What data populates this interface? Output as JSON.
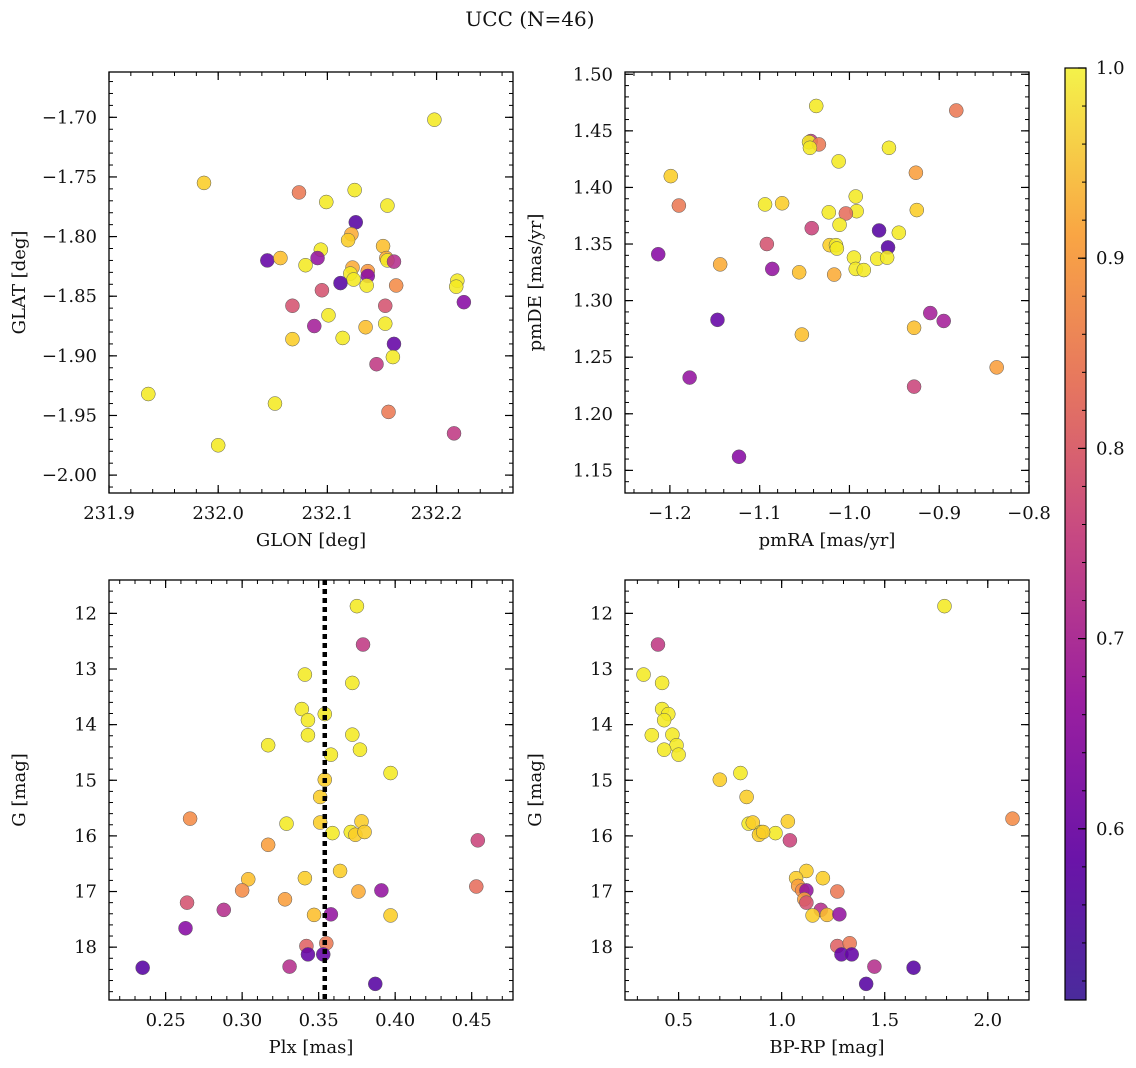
{
  "figure": {
    "title": "UCC (N=46)"
  },
  "colorbar": {
    "colormap": "plasma",
    "range": [
      0.51,
      1.0
    ],
    "ticks": [
      0.6,
      0.7,
      0.8,
      0.9,
      1.0
    ],
    "tick_labels": [
      "0.6",
      "0.7",
      "0.8",
      "0.9",
      "1.0"
    ]
  },
  "chart_data": [
    {
      "type": "scatter",
      "title": "",
      "xlabel": "GLON [deg]",
      "ylabel": "GLAT [deg]",
      "xlim": [
        231.9,
        232.27
      ],
      "ylim": [
        -2.015,
        -1.662
      ],
      "xticks": [
        231.9,
        232.0,
        232.1,
        232.2
      ],
      "xtick_labels": [
        "231.9",
        "232.0",
        "232.1",
        "232.2"
      ],
      "yticks": [
        -2.0,
        -1.95,
        -1.9,
        -1.85,
        -1.8,
        -1.75,
        -1.7
      ],
      "ytick_labels": [
        "−2.00",
        "−1.95",
        "−1.90",
        "−1.85",
        "−1.80",
        "−1.75",
        "−1.70"
      ],
      "y_inverted": false,
      "grid": false,
      "points": [
        {
          "x": 232.198,
          "y": -1.702,
          "c": 0.985
        },
        {
          "x": 231.987,
          "y": -1.755,
          "c": 0.95
        },
        {
          "x": 232.074,
          "y": -1.763,
          "c": 0.82
        },
        {
          "x": 232.125,
          "y": -1.761,
          "c": 0.985
        },
        {
          "x": 232.099,
          "y": -1.771,
          "c": 0.985
        },
        {
          "x": 232.155,
          "y": -1.774,
          "c": 0.985
        },
        {
          "x": 232.126,
          "y": -1.788,
          "c": 0.53
        },
        {
          "x": 232.122,
          "y": -1.798,
          "c": 0.9
        },
        {
          "x": 232.119,
          "y": -1.803,
          "c": 0.95
        },
        {
          "x": 232.094,
          "y": -1.811,
          "c": 0.985
        },
        {
          "x": 232.151,
          "y": -1.808,
          "c": 0.93
        },
        {
          "x": 232.154,
          "y": -1.818,
          "c": 0.9
        },
        {
          "x": 232.155,
          "y": -1.82,
          "c": 0.985
        },
        {
          "x": 232.045,
          "y": -1.82,
          "c": 0.55
        },
        {
          "x": 232.057,
          "y": -1.818,
          "c": 0.93
        },
        {
          "x": 232.08,
          "y": -1.824,
          "c": 0.985
        },
        {
          "x": 232.091,
          "y": -1.818,
          "c": 0.62
        },
        {
          "x": 232.161,
          "y": -1.821,
          "c": 0.68
        },
        {
          "x": 232.123,
          "y": -1.826,
          "c": 0.9
        },
        {
          "x": 232.137,
          "y": -1.829,
          "c": 0.87
        },
        {
          "x": 232.137,
          "y": -1.833,
          "c": 0.6
        },
        {
          "x": 232.121,
          "y": -1.831,
          "c": 0.985
        },
        {
          "x": 232.124,
          "y": -1.836,
          "c": 0.985
        },
        {
          "x": 232.112,
          "y": -1.839,
          "c": 0.53
        },
        {
          "x": 232.136,
          "y": -1.841,
          "c": 0.985
        },
        {
          "x": 232.163,
          "y": -1.841,
          "c": 0.85
        },
        {
          "x": 232.219,
          "y": -1.837,
          "c": 0.985
        },
        {
          "x": 232.218,
          "y": -1.842,
          "c": 0.985
        },
        {
          "x": 232.095,
          "y": -1.845,
          "c": 0.75
        },
        {
          "x": 232.225,
          "y": -1.855,
          "c": 0.6
        },
        {
          "x": 232.068,
          "y": -1.858,
          "c": 0.75
        },
        {
          "x": 232.153,
          "y": -1.858,
          "c": 0.75
        },
        {
          "x": 232.101,
          "y": -1.866,
          "c": 0.985
        },
        {
          "x": 232.088,
          "y": -1.875,
          "c": 0.65
        },
        {
          "x": 232.153,
          "y": -1.873,
          "c": 0.985
        },
        {
          "x": 232.135,
          "y": -1.876,
          "c": 0.93
        },
        {
          "x": 232.068,
          "y": -1.886,
          "c": 0.95
        },
        {
          "x": 232.114,
          "y": -1.885,
          "c": 0.985
        },
        {
          "x": 232.161,
          "y": -1.89,
          "c": 0.55
        },
        {
          "x": 232.16,
          "y": -1.901,
          "c": 0.985
        },
        {
          "x": 232.145,
          "y": -1.907,
          "c": 0.7
        },
        {
          "x": 231.936,
          "y": -1.932,
          "c": 0.985
        },
        {
          "x": 232.052,
          "y": -1.94,
          "c": 0.985
        },
        {
          "x": 232.156,
          "y": -1.947,
          "c": 0.82
        },
        {
          "x": 232.216,
          "y": -1.965,
          "c": 0.7
        },
        {
          "x": 232.0,
          "y": -1.975,
          "c": 0.985
        }
      ]
    },
    {
      "type": "scatter",
      "title": "",
      "xlabel": "pmRA [mas/yr]",
      "ylabel": "pmDE [mas/yr]",
      "xlim": [
        -1.25,
        -0.8
      ],
      "ylim": [
        1.13,
        1.502
      ],
      "xticks": [
        -1.2,
        -1.1,
        -1.0,
        -0.9,
        -0.8
      ],
      "xtick_labels": [
        "−1.2",
        "−1.1",
        "−1.0",
        "−0.9",
        "−0.8"
      ],
      "yticks": [
        1.15,
        1.2,
        1.25,
        1.3,
        1.35,
        1.4,
        1.45,
        1.5
      ],
      "ytick_labels": [
        "1.15",
        "1.20",
        "1.25",
        "1.30",
        "1.35",
        "1.40",
        "1.45",
        "1.50"
      ],
      "y_inverted": false,
      "grid": false,
      "points": [
        {
          "x": -1.037,
          "y": 1.472,
          "c": 0.985
        },
        {
          "x": -0.881,
          "y": 1.468,
          "c": 0.82
        },
        {
          "x": -1.043,
          "y": 1.441,
          "c": 0.7
        },
        {
          "x": -1.045,
          "y": 1.44,
          "c": 0.985
        },
        {
          "x": -1.034,
          "y": 1.438,
          "c": 0.82
        },
        {
          "x": -1.044,
          "y": 1.435,
          "c": 0.985
        },
        {
          "x": -0.956,
          "y": 1.435,
          "c": 0.985
        },
        {
          "x": -1.012,
          "y": 1.423,
          "c": 0.985
        },
        {
          "x": -0.926,
          "y": 1.413,
          "c": 0.88
        },
        {
          "x": -1.199,
          "y": 1.41,
          "c": 0.95
        },
        {
          "x": -0.993,
          "y": 1.392,
          "c": 0.985
        },
        {
          "x": -1.075,
          "y": 1.386,
          "c": 0.95
        },
        {
          "x": -1.094,
          "y": 1.385,
          "c": 0.985
        },
        {
          "x": -1.19,
          "y": 1.384,
          "c": 0.82
        },
        {
          "x": -0.925,
          "y": 1.38,
          "c": 0.95
        },
        {
          "x": -0.992,
          "y": 1.379,
          "c": 0.985
        },
        {
          "x": -1.004,
          "y": 1.377,
          "c": 0.8
        },
        {
          "x": -1.023,
          "y": 1.378,
          "c": 0.985
        },
        {
          "x": -1.011,
          "y": 1.367,
          "c": 0.985
        },
        {
          "x": -1.042,
          "y": 1.364,
          "c": 0.72
        },
        {
          "x": -0.967,
          "y": 1.362,
          "c": 0.53
        },
        {
          "x": -0.945,
          "y": 1.36,
          "c": 0.985
        },
        {
          "x": -1.213,
          "y": 1.341,
          "c": 0.6
        },
        {
          "x": -1.092,
          "y": 1.35,
          "c": 0.75
        },
        {
          "x": -1.022,
          "y": 1.349,
          "c": 0.95
        },
        {
          "x": -1.015,
          "y": 1.349,
          "c": 0.985
        },
        {
          "x": -1.014,
          "y": 1.346,
          "c": 0.985
        },
        {
          "x": -0.957,
          "y": 1.347,
          "c": 0.53
        },
        {
          "x": -0.995,
          "y": 1.338,
          "c": 0.985
        },
        {
          "x": -0.969,
          "y": 1.337,
          "c": 0.985
        },
        {
          "x": -0.958,
          "y": 1.338,
          "c": 0.985
        },
        {
          "x": -1.144,
          "y": 1.332,
          "c": 0.9
        },
        {
          "x": -1.086,
          "y": 1.328,
          "c": 0.62
        },
        {
          "x": -0.993,
          "y": 1.328,
          "c": 0.985
        },
        {
          "x": -0.984,
          "y": 1.327,
          "c": 0.985
        },
        {
          "x": -1.056,
          "y": 1.325,
          "c": 0.93
        },
        {
          "x": -1.017,
          "y": 1.323,
          "c": 0.9
        },
        {
          "x": -0.91,
          "y": 1.289,
          "c": 0.65
        },
        {
          "x": -1.147,
          "y": 1.283,
          "c": 0.55
        },
        {
          "x": -0.895,
          "y": 1.282,
          "c": 0.65
        },
        {
          "x": -0.928,
          "y": 1.276,
          "c": 0.93
        },
        {
          "x": -1.053,
          "y": 1.27,
          "c": 0.93
        },
        {
          "x": -0.836,
          "y": 1.241,
          "c": 0.88
        },
        {
          "x": -1.178,
          "y": 1.232,
          "c": 0.62
        },
        {
          "x": -0.928,
          "y": 1.224,
          "c": 0.72
        },
        {
          "x": -1.123,
          "y": 1.162,
          "c": 0.6
        }
      ]
    },
    {
      "type": "scatter",
      "title": "",
      "xlabel": "Plx [mas]",
      "ylabel": "G [mag]",
      "xlim": [
        0.213,
        0.477
      ],
      "ylim": [
        18.95,
        11.4
      ],
      "xticks": [
        0.25,
        0.3,
        0.35,
        0.4,
        0.45
      ],
      "xtick_labels": [
        "0.25",
        "0.30",
        "0.35",
        "0.40",
        "0.45"
      ],
      "yticks": [
        12,
        13,
        14,
        15,
        16,
        17,
        18
      ],
      "ytick_labels": [
        "12",
        "13",
        "14",
        "15",
        "16",
        "17",
        "18"
      ],
      "y_inverted": true,
      "grid": false,
      "vline": {
        "x": 0.354,
        "style": "dotted",
        "color": "#000000"
      },
      "points": [
        {
          "x": 0.375,
          "y": 11.87,
          "c": 0.985
        },
        {
          "x": 0.379,
          "y": 12.56,
          "c": 0.7
        },
        {
          "x": 0.341,
          "y": 13.1,
          "c": 0.985
        },
        {
          "x": 0.372,
          "y": 13.25,
          "c": 0.985
        },
        {
          "x": 0.339,
          "y": 13.72,
          "c": 0.985
        },
        {
          "x": 0.354,
          "y": 13.81,
          "c": 0.985
        },
        {
          "x": 0.343,
          "y": 13.92,
          "c": 0.985
        },
        {
          "x": 0.343,
          "y": 14.19,
          "c": 0.985
        },
        {
          "x": 0.372,
          "y": 14.18,
          "c": 0.985
        },
        {
          "x": 0.317,
          "y": 14.37,
          "c": 0.985
        },
        {
          "x": 0.377,
          "y": 14.45,
          "c": 0.985
        },
        {
          "x": 0.358,
          "y": 14.54,
          "c": 0.985
        },
        {
          "x": 0.397,
          "y": 14.87,
          "c": 0.985
        },
        {
          "x": 0.354,
          "y": 14.99,
          "c": 0.95
        },
        {
          "x": 0.351,
          "y": 15.3,
          "c": 0.95
        },
        {
          "x": 0.266,
          "y": 15.69,
          "c": 0.85
        },
        {
          "x": 0.329,
          "y": 15.78,
          "c": 0.985
        },
        {
          "x": 0.351,
          "y": 15.76,
          "c": 0.95
        },
        {
          "x": 0.378,
          "y": 15.74,
          "c": 0.95
        },
        {
          "x": 0.371,
          "y": 15.93,
          "c": 0.985
        },
        {
          "x": 0.359,
          "y": 15.95,
          "c": 0.985
        },
        {
          "x": 0.374,
          "y": 15.98,
          "c": 0.95
        },
        {
          "x": 0.38,
          "y": 15.93,
          "c": 0.95
        },
        {
          "x": 0.454,
          "y": 16.08,
          "c": 0.72
        },
        {
          "x": 0.317,
          "y": 16.16,
          "c": 0.88
        },
        {
          "x": 0.364,
          "y": 16.63,
          "c": 0.95
        },
        {
          "x": 0.341,
          "y": 16.76,
          "c": 0.95
        },
        {
          "x": 0.304,
          "y": 16.78,
          "c": 0.93
        },
        {
          "x": 0.3,
          "y": 16.98,
          "c": 0.85
        },
        {
          "x": 0.376,
          "y": 17.0,
          "c": 0.9
        },
        {
          "x": 0.391,
          "y": 16.98,
          "c": 0.62
        },
        {
          "x": 0.453,
          "y": 16.91,
          "c": 0.8
        },
        {
          "x": 0.264,
          "y": 17.2,
          "c": 0.75
        },
        {
          "x": 0.328,
          "y": 17.14,
          "c": 0.88
        },
        {
          "x": 0.288,
          "y": 17.33,
          "c": 0.68
        },
        {
          "x": 0.347,
          "y": 17.42,
          "c": 0.93
        },
        {
          "x": 0.358,
          "y": 17.41,
          "c": 0.62
        },
        {
          "x": 0.397,
          "y": 17.43,
          "c": 0.95
        },
        {
          "x": 0.263,
          "y": 17.66,
          "c": 0.6
        },
        {
          "x": 0.342,
          "y": 17.98,
          "c": 0.78
        },
        {
          "x": 0.355,
          "y": 17.93,
          "c": 0.82
        },
        {
          "x": 0.343,
          "y": 18.13,
          "c": 0.55
        },
        {
          "x": 0.353,
          "y": 18.13,
          "c": 0.55
        },
        {
          "x": 0.235,
          "y": 18.37,
          "c": 0.53
        },
        {
          "x": 0.331,
          "y": 18.35,
          "c": 0.68
        },
        {
          "x": 0.387,
          "y": 18.66,
          "c": 0.53
        }
      ]
    },
    {
      "type": "scatter",
      "title": "",
      "xlabel": "BP-RP [mag]",
      "ylabel": "G [mag]",
      "xlim": [
        0.24,
        2.2
      ],
      "ylim": [
        18.95,
        11.4
      ],
      "xticks": [
        0.5,
        1.0,
        1.5,
        2.0
      ],
      "xtick_labels": [
        "0.5",
        "1.0",
        "1.5",
        "2.0"
      ],
      "yticks": [
        12,
        13,
        14,
        15,
        16,
        17,
        18
      ],
      "ytick_labels": [
        "12",
        "13",
        "14",
        "15",
        "16",
        "17",
        "18"
      ],
      "y_inverted": true,
      "grid": false,
      "points": [
        {
          "x": 1.79,
          "y": 11.87,
          "c": 0.985
        },
        {
          "x": 0.4,
          "y": 12.56,
          "c": 0.7
        },
        {
          "x": 0.33,
          "y": 13.1,
          "c": 0.985
        },
        {
          "x": 0.42,
          "y": 13.25,
          "c": 0.985
        },
        {
          "x": 0.42,
          "y": 13.72,
          "c": 0.985
        },
        {
          "x": 0.45,
          "y": 13.81,
          "c": 0.985
        },
        {
          "x": 0.43,
          "y": 13.92,
          "c": 0.985
        },
        {
          "x": 0.37,
          "y": 14.19,
          "c": 0.985
        },
        {
          "x": 0.47,
          "y": 14.18,
          "c": 0.985
        },
        {
          "x": 0.49,
          "y": 14.37,
          "c": 0.985
        },
        {
          "x": 0.43,
          "y": 14.45,
          "c": 0.985
        },
        {
          "x": 0.5,
          "y": 14.54,
          "c": 0.985
        },
        {
          "x": 0.8,
          "y": 14.87,
          "c": 0.985
        },
        {
          "x": 0.7,
          "y": 14.99,
          "c": 0.95
        },
        {
          "x": 0.83,
          "y": 15.3,
          "c": 0.95
        },
        {
          "x": 2.12,
          "y": 15.69,
          "c": 0.85
        },
        {
          "x": 0.84,
          "y": 15.78,
          "c": 0.985
        },
        {
          "x": 0.86,
          "y": 15.76,
          "c": 0.95
        },
        {
          "x": 1.03,
          "y": 15.74,
          "c": 0.95
        },
        {
          "x": 0.9,
          "y": 15.93,
          "c": 0.985
        },
        {
          "x": 0.97,
          "y": 15.95,
          "c": 0.985
        },
        {
          "x": 0.89,
          "y": 15.98,
          "c": 0.95
        },
        {
          "x": 0.91,
          "y": 15.93,
          "c": 0.95
        },
        {
          "x": 1.04,
          "y": 16.08,
          "c": 0.72
        },
        {
          "x": 1.12,
          "y": 16.63,
          "c": 0.95
        },
        {
          "x": 1.2,
          "y": 16.76,
          "c": 0.95
        },
        {
          "x": 1.07,
          "y": 16.76,
          "c": 0.95
        },
        {
          "x": 1.08,
          "y": 16.9,
          "c": 0.88
        },
        {
          "x": 1.1,
          "y": 16.98,
          "c": 0.85
        },
        {
          "x": 1.27,
          "y": 17.0,
          "c": 0.82
        },
        {
          "x": 1.12,
          "y": 16.98,
          "c": 0.62
        },
        {
          "x": 1.11,
          "y": 17.14,
          "c": 0.88
        },
        {
          "x": 1.12,
          "y": 17.2,
          "c": 0.75
        },
        {
          "x": 1.19,
          "y": 17.33,
          "c": 0.68
        },
        {
          "x": 1.22,
          "y": 17.42,
          "c": 0.93
        },
        {
          "x": 1.28,
          "y": 17.41,
          "c": 0.62
        },
        {
          "x": 1.15,
          "y": 17.43,
          "c": 0.95
        },
        {
          "x": 1.27,
          "y": 17.98,
          "c": 0.78
        },
        {
          "x": 1.33,
          "y": 17.93,
          "c": 0.82
        },
        {
          "x": 1.29,
          "y": 18.13,
          "c": 0.55
        },
        {
          "x": 1.34,
          "y": 18.13,
          "c": 0.55
        },
        {
          "x": 1.64,
          "y": 18.37,
          "c": 0.53
        },
        {
          "x": 1.45,
          "y": 18.35,
          "c": 0.68
        },
        {
          "x": 1.41,
          "y": 18.66,
          "c": 0.53
        }
      ]
    }
  ]
}
